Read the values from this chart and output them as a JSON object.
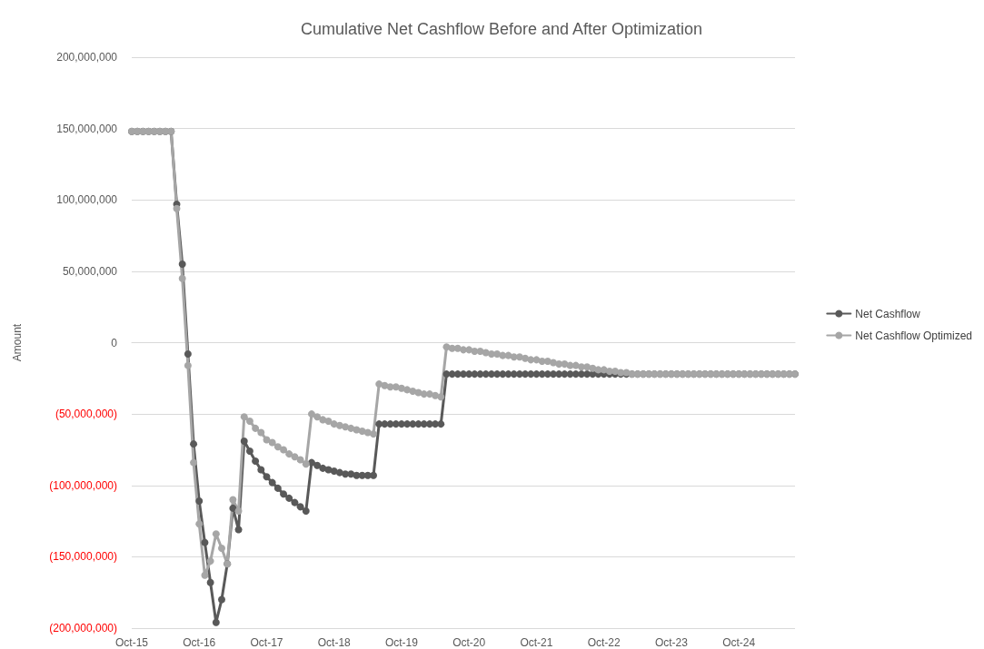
{
  "chart_data": {
    "type": "line",
    "title": "Cumulative Net Cashflow Before and After Optimization",
    "ylabel": "Amount",
    "categories": [
      "Oct-15",
      null,
      null,
      null,
      null,
      null,
      null,
      null,
      null,
      null,
      null,
      null,
      "Oct-16",
      null,
      null,
      null,
      null,
      null,
      null,
      null,
      null,
      null,
      null,
      null,
      "Oct-17",
      null,
      null,
      null,
      null,
      null,
      null,
      null,
      null,
      null,
      null,
      null,
      "Oct-18",
      null,
      null,
      null,
      null,
      null,
      null,
      null,
      null,
      null,
      null,
      null,
      "Oct-19",
      null,
      null,
      null,
      null,
      null,
      null,
      null,
      null,
      null,
      null,
      null,
      "Oct-20",
      null,
      null,
      null,
      null,
      null,
      null,
      null,
      null,
      null,
      null,
      null,
      "Oct-21",
      null,
      null,
      null,
      null,
      null,
      null,
      null,
      null,
      null,
      null,
      null,
      "Oct-22",
      null,
      null,
      null,
      null,
      null,
      null,
      null,
      null,
      null,
      null,
      null,
      "Oct-23",
      null,
      null,
      null,
      null,
      null,
      null,
      null,
      null,
      null,
      null,
      null,
      "Oct-24",
      null,
      null,
      null,
      null,
      null,
      null,
      null,
      null,
      null,
      null
    ],
    "series": [
      {
        "name": "Net Cashflow",
        "color": "#595959",
        "values": [
          148000000,
          148000000,
          148000000,
          148000000,
          148000000,
          148000000,
          148000000,
          148000000,
          97000000,
          55000000,
          -8000000,
          -71000000,
          -111000000,
          -140000000,
          -168000000,
          -196000000,
          -180000000,
          -155000000,
          -116000000,
          -131000000,
          -69000000,
          -76000000,
          -83000000,
          -89000000,
          -94000000,
          -98000000,
          -102000000,
          -106000000,
          -109000000,
          -112000000,
          -115000000,
          -118000000,
          -84000000,
          -86000000,
          -88000000,
          -89000000,
          -90000000,
          -91000000,
          -92000000,
          -92000000,
          -93000000,
          -93000000,
          -93000000,
          -93000000,
          -57000000,
          -57000000,
          -57000000,
          -57000000,
          -57000000,
          -57000000,
          -57000000,
          -57000000,
          -57000000,
          -57000000,
          -57000000,
          -57000000,
          -22000000,
          -22000000,
          -22000000,
          -22000000,
          -22000000,
          -22000000,
          -22000000,
          -22000000,
          -22000000,
          -22000000,
          -22000000,
          -22000000,
          -22000000,
          -22000000,
          -22000000,
          -22000000,
          -22000000,
          -22000000,
          -22000000,
          -22000000,
          -22000000,
          -22000000,
          -22000000,
          -22000000,
          -22000000,
          -22000000,
          -22000000,
          -22000000,
          -22000000,
          -22000000,
          -22000000,
          -22000000,
          -22000000,
          -22000000,
          -22000000,
          -22000000,
          -22000000,
          -22000000,
          -22000000,
          -22000000,
          -22000000,
          -22000000,
          -22000000,
          -22000000,
          -22000000,
          -22000000,
          -22000000,
          -22000000,
          -22000000,
          -22000000,
          -22000000,
          -22000000,
          -22000000,
          -22000000,
          -22000000,
          -22000000,
          -22000000,
          -22000000,
          -22000000,
          -22000000,
          -22000000,
          -22000000,
          -22000000
        ]
      },
      {
        "name": "Net Cashflow Optimized",
        "color": "#a6a6a6",
        "values": [
          148000000,
          148000000,
          148000000,
          148000000,
          148000000,
          148000000,
          148000000,
          148000000,
          94000000,
          45000000,
          -16000000,
          -84000000,
          -127000000,
          -163000000,
          -153000000,
          -134000000,
          -144000000,
          -155000000,
          -110000000,
          -118000000,
          -52000000,
          -55000000,
          -60000000,
          -63000000,
          -68000000,
          -70000000,
          -73000000,
          -75000000,
          -78000000,
          -80000000,
          -82000000,
          -85000000,
          -50000000,
          -52000000,
          -54000000,
          -55000000,
          -57000000,
          -58000000,
          -59000000,
          -60000000,
          -61000000,
          -62000000,
          -63000000,
          -64000000,
          -29000000,
          -30000000,
          -31000000,
          -31000000,
          -32000000,
          -33000000,
          -34000000,
          -35000000,
          -36000000,
          -36000000,
          -37000000,
          -38000000,
          -3000000,
          -4000000,
          -4000000,
          -5000000,
          -5000000,
          -6000000,
          -6000000,
          -7000000,
          -8000000,
          -8000000,
          -9000000,
          -9000000,
          -10000000,
          -10000000,
          -11000000,
          -12000000,
          -12000000,
          -13000000,
          -13000000,
          -14000000,
          -15000000,
          -15000000,
          -16000000,
          -16000000,
          -17000000,
          -17000000,
          -18000000,
          -19000000,
          -19000000,
          -20000000,
          -20000000,
          -21000000,
          -21000000,
          -22000000,
          -22000000,
          -22000000,
          -22000000,
          -22000000,
          -22000000,
          -22000000,
          -22000000,
          -22000000,
          -22000000,
          -22000000,
          -22000000,
          -22000000,
          -22000000,
          -22000000,
          -22000000,
          -22000000,
          -22000000,
          -22000000,
          -22000000,
          -22000000,
          -22000000,
          -22000000,
          -22000000,
          -22000000,
          -22000000,
          -22000000,
          -22000000,
          -22000000,
          -22000000
        ]
      }
    ],
    "ylim": [
      -200000000,
      200000000
    ],
    "yticks": [
      {
        "value": -200000000,
        "label": "(200,000,000)"
      },
      {
        "value": -150000000,
        "label": "(150,000,000)"
      },
      {
        "value": -100000000,
        "label": "(100,000,000)"
      },
      {
        "value": -50000000,
        "label": "(50,000,000)"
      },
      {
        "value": 0,
        "label": "0"
      },
      {
        "value": 50000000,
        "label": "50,000,000"
      },
      {
        "value": 100000000,
        "label": "100,000,000"
      },
      {
        "value": 150000000,
        "label": "150,000,000"
      },
      {
        "value": 200000000,
        "label": "200,000,000"
      }
    ],
    "grid": "y",
    "legend": "right",
    "marker": "circle",
    "line_style": "solid"
  }
}
